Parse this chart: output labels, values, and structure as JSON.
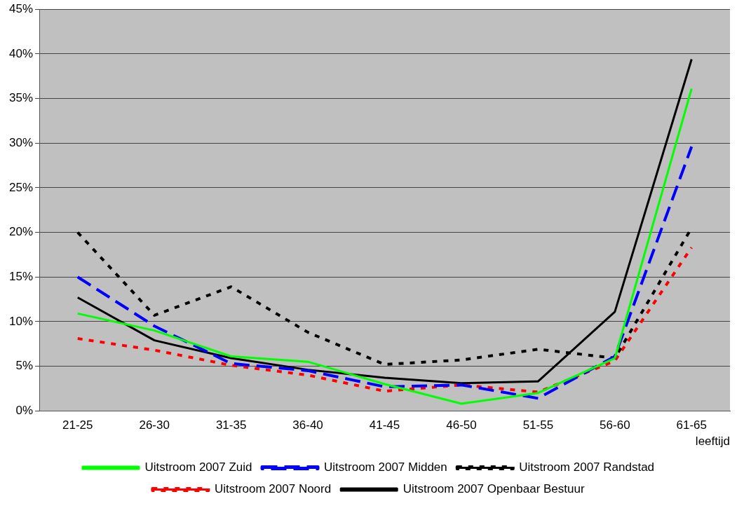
{
  "chart_data": {
    "type": "line",
    "xlabel": "leeftijd",
    "categories": [
      "21-25",
      "26-30",
      "31-35",
      "36-40",
      "41-45",
      "46-50",
      "51-55",
      "56-60",
      "61-65"
    ],
    "series": [
      {
        "name": "Uitstroom 2007 Zuid",
        "color": "#00ff00",
        "line_style": "solid",
        "values": [
          10.9,
          9.0,
          6.1,
          5.5,
          3.0,
          0.8,
          2.0,
          5.9,
          36.1
        ]
      },
      {
        "name": "Uitstroom 2007 Midden",
        "color": "#0000ff",
        "line_style": "dashed",
        "values": [
          15.0,
          9.5,
          5.3,
          4.5,
          2.7,
          2.9,
          1.4,
          6.1,
          29.6
        ]
      },
      {
        "name": "Uitstroom 2007 Randstad",
        "color": "#000000",
        "line_style": "dotted",
        "values": [
          20.0,
          10.7,
          13.9,
          8.8,
          5.2,
          5.7,
          6.9,
          5.9,
          20.5
        ]
      },
      {
        "name": "Uitstroom 2007 Noord",
        "color": "#ff0000",
        "line_style": "dotted",
        "values": [
          8.1,
          6.8,
          5.1,
          4.0,
          2.2,
          2.9,
          2.1,
          5.6,
          18.3
        ]
      },
      {
        "name": "Uitstroom 2007 Openbaar Bestuur",
        "color": "#000000",
        "line_style": "solid",
        "values": [
          12.7,
          7.9,
          5.9,
          4.6,
          3.7,
          3.1,
          3.3,
          11.1,
          39.4
        ]
      }
    ],
    "ylim": [
      0,
      45
    ],
    "yticks": [
      {
        "value": 0,
        "label": "0%"
      },
      {
        "value": 5,
        "label": "5%"
      },
      {
        "value": 10,
        "label": "10%"
      },
      {
        "value": 15,
        "label": "15%"
      },
      {
        "value": 20,
        "label": "20%"
      },
      {
        "value": 25,
        "label": "25%"
      },
      {
        "value": 30,
        "label": "30%"
      },
      {
        "value": 35,
        "label": "35%"
      },
      {
        "value": 40,
        "label": "40%"
      },
      {
        "value": 45,
        "label": "45%"
      }
    ],
    "grid": "y",
    "legend": "bottom",
    "marker": "none"
  }
}
